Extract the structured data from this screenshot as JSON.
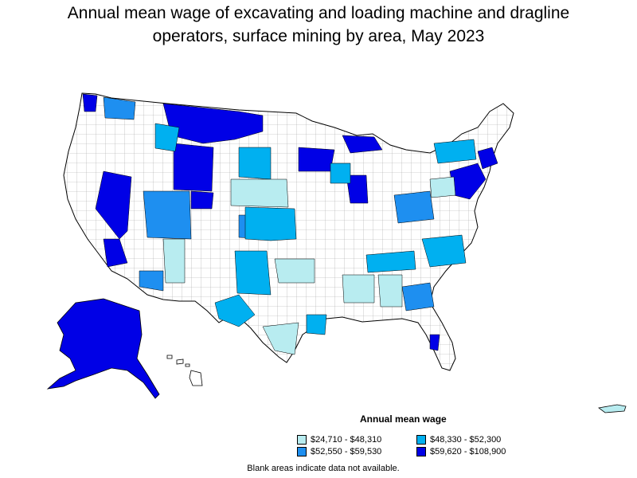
{
  "title_line1": "Annual mean wage of excavating and loading machine and dragline",
  "title_line2": "operators, surface mining by area, May 2023",
  "legend": {
    "title": "Annual mean wage",
    "items": [
      {
        "label": "$24,710 - $48,310",
        "color": "#b8ecf0"
      },
      {
        "label": "$48,330 - $52,300",
        "color": "#00b0f0"
      },
      {
        "label": "$52,550 - $59,530",
        "color": "#1e8ff0"
      },
      {
        "label": "$59,620 - $108,900",
        "color": "#0000e6"
      }
    ]
  },
  "footnote": "Blank areas indicate data not available."
}
